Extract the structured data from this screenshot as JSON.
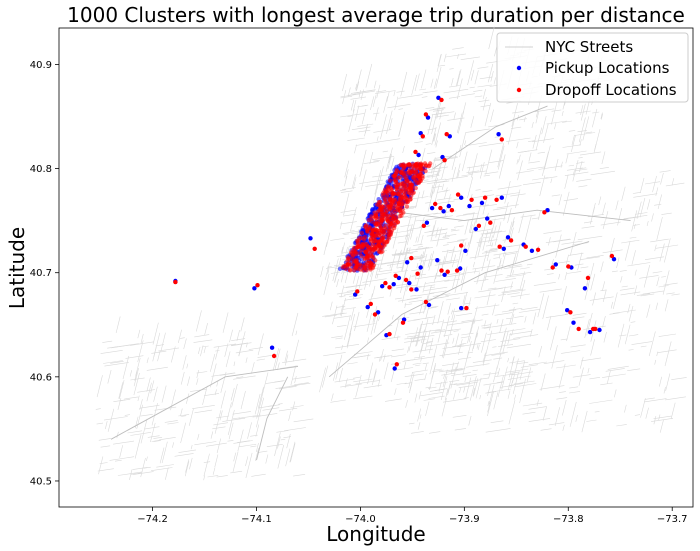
{
  "chart_data": {
    "type": "scatter",
    "title": "1000 Clusters with longest average trip duration per distance",
    "xlabel": "Longitude",
    "ylabel": "Latitude",
    "xlim": [
      -74.29,
      -73.68
    ],
    "ylim": [
      40.475,
      40.935
    ],
    "xticks": [
      -74.2,
      -74.1,
      -74.0,
      -73.9,
      -73.8,
      -73.7
    ],
    "xtick_labels": [
      "−74.2",
      "−74.1",
      "−74.0",
      "−73.9",
      "−73.8",
      "−73.7"
    ],
    "yticks": [
      40.5,
      40.6,
      40.7,
      40.8,
      40.9
    ],
    "ytick_labels": [
      "40.5",
      "40.6",
      "40.7",
      "40.8",
      "40.9"
    ],
    "grid": false,
    "legend_position": "top-right",
    "legend": [
      {
        "label": "NYC Streets",
        "marker": "line",
        "color": "#d9d9d9"
      },
      {
        "label": "Pickup Locations",
        "marker": "dot",
        "color": "#0000ff"
      },
      {
        "label": "Dropoff Locations",
        "marker": "dot",
        "color": "#ff0000"
      }
    ],
    "series": [
      {
        "name": "Pickup Locations",
        "color": "#0000ff",
        "points": [
          [
            -74.178,
            40.692
          ],
          [
            -74.102,
            40.685
          ],
          [
            -74.048,
            40.733
          ],
          [
            -74.085,
            40.628
          ],
          [
            -73.958,
            40.655
          ],
          [
            -73.975,
            40.64
          ],
          [
            -73.967,
            40.608
          ],
          [
            -73.903,
            40.666
          ],
          [
            -73.899,
            40.721
          ],
          [
            -73.895,
            40.764
          ],
          [
            -73.867,
            40.833
          ],
          [
            -73.925,
            40.868
          ],
          [
            -73.935,
            40.849
          ],
          [
            -73.921,
            40.811
          ],
          [
            -73.942,
            40.834
          ],
          [
            -73.944,
            40.813
          ],
          [
            -73.914,
            40.831
          ],
          [
            -73.903,
            40.772
          ],
          [
            -73.878,
            40.752
          ],
          [
            -73.864,
            40.772
          ],
          [
            -73.883,
            40.767
          ],
          [
            -73.915,
            40.764
          ],
          [
            -73.936,
            40.748
          ],
          [
            -73.931,
            40.762
          ],
          [
            -73.92,
            40.759
          ],
          [
            -73.926,
            40.712
          ],
          [
            -73.942,
            40.705
          ],
          [
            -73.946,
            40.684
          ],
          [
            -73.934,
            40.669
          ],
          [
            -73.953,
            40.69
          ],
          [
            -73.955,
            40.71
          ],
          [
            -73.963,
            40.695
          ],
          [
            -73.983,
            40.662
          ],
          [
            -73.993,
            40.667
          ],
          [
            -74.005,
            40.679
          ],
          [
            -74.015,
            40.705
          ],
          [
            -73.979,
            40.687
          ],
          [
            -73.968,
            40.689
          ],
          [
            -73.919,
            40.698
          ],
          [
            -73.904,
            40.704
          ],
          [
            -73.858,
            40.734
          ],
          [
            -73.843,
            40.727
          ],
          [
            -73.835,
            40.721
          ],
          [
            -73.82,
            40.76
          ],
          [
            -73.812,
            40.708
          ],
          [
            -73.797,
            40.705
          ],
          [
            -73.784,
            40.685
          ],
          [
            -73.801,
            40.664
          ],
          [
            -73.795,
            40.652
          ],
          [
            -73.77,
            40.645
          ],
          [
            -73.779,
            40.643
          ],
          [
            -73.756,
            40.713
          ],
          [
            -73.862,
            40.723
          ],
          [
            -73.889,
            40.742
          ],
          [
            -73.96,
            40.763
          ],
          [
            -73.95,
            40.779
          ],
          [
            -73.946,
            40.79
          ],
          [
            -73.94,
            40.8
          ],
          [
            -73.956,
            40.8
          ],
          [
            -73.97,
            40.79
          ]
        ],
        "core_cluster": {
          "lon_range": [
            -74.015,
            -73.945
          ],
          "lat_range": [
            40.702,
            40.805
          ]
        }
      },
      {
        "name": "Dropoff Locations",
        "color": "#ff0000",
        "points": [
          [
            -74.178,
            40.691
          ],
          [
            -74.099,
            40.688
          ],
          [
            -74.044,
            40.723
          ],
          [
            -74.083,
            40.62
          ],
          [
            -73.959,
            40.652
          ],
          [
            -73.972,
            40.641
          ],
          [
            -73.965,
            40.612
          ],
          [
            -73.898,
            40.666
          ],
          [
            -73.903,
            40.726
          ],
          [
            -73.893,
            40.77
          ],
          [
            -73.864,
            40.828
          ],
          [
            -73.922,
            40.866
          ],
          [
            -73.937,
            40.852
          ],
          [
            -73.919,
            40.808
          ],
          [
            -73.94,
            40.831
          ],
          [
            -73.947,
            40.816
          ],
          [
            -73.917,
            40.833
          ],
          [
            -73.906,
            40.775
          ],
          [
            -73.875,
            40.748
          ],
          [
            -73.869,
            40.77
          ],
          [
            -73.88,
            40.772
          ],
          [
            -73.912,
            40.76
          ],
          [
            -73.939,
            40.745
          ],
          [
            -73.928,
            40.766
          ],
          [
            -73.923,
            40.762
          ],
          [
            -73.922,
            40.702
          ],
          [
            -73.945,
            40.699
          ],
          [
            -73.951,
            40.684
          ],
          [
            -73.937,
            40.672
          ],
          [
            -73.956,
            40.693
          ],
          [
            -73.951,
            40.714
          ],
          [
            -73.966,
            40.697
          ],
          [
            -73.986,
            40.66
          ],
          [
            -73.99,
            40.67
          ],
          [
            -74.003,
            40.682
          ],
          [
            -74.012,
            40.708
          ],
          [
            -73.976,
            40.69
          ],
          [
            -73.972,
            40.686
          ],
          [
            -73.916,
            40.701
          ],
          [
            -73.907,
            40.702
          ],
          [
            -73.855,
            40.731
          ],
          [
            -73.841,
            40.725
          ],
          [
            -73.829,
            40.722
          ],
          [
            -73.823,
            40.758
          ],
          [
            -73.815,
            40.705
          ],
          [
            -73.8,
            40.706
          ],
          [
            -73.781,
            40.695
          ],
          [
            -73.798,
            40.662
          ],
          [
            -73.79,
            40.646
          ],
          [
            -73.774,
            40.646
          ],
          [
            -73.776,
            40.646
          ],
          [
            -73.758,
            40.716
          ],
          [
            -73.866,
            40.725
          ],
          [
            -73.886,
            40.745
          ],
          [
            -73.963,
            40.766
          ],
          [
            -73.952,
            40.782
          ],
          [
            -73.944,
            40.793
          ],
          [
            -73.942,
            40.803
          ],
          [
            -73.953,
            40.804
          ],
          [
            -73.967,
            40.793
          ]
        ],
        "core_cluster": {
          "lon_range": [
            -74.015,
            -73.945
          ],
          "lat_range": [
            40.702,
            40.805
          ]
        }
      }
    ]
  }
}
